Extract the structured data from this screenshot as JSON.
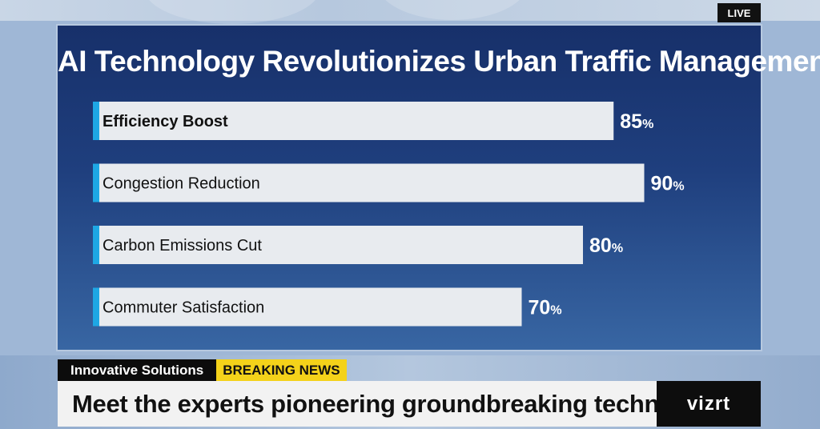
{
  "live_badge": "LIVE",
  "chart_data": {
    "type": "bar",
    "orientation": "horizontal",
    "title": "AI Technology Revolutionizes Urban Traffic Management",
    "categories": [
      "Efficiency Boost",
      "Congestion Reduction",
      "Carbon Emissions Cut",
      "Commuter Satisfaction"
    ],
    "values": [
      85,
      90,
      80,
      70
    ],
    "value_suffix": "%",
    "xlim": [
      0,
      100
    ],
    "grid": false,
    "legend": "none"
  },
  "colors": {
    "panel_top": "#17306a",
    "panel_bottom": "#3866a3",
    "bar_fill": "#e8ebef",
    "bar_accent": "#1ea7e4",
    "breaking_tag": "#f4d21a"
  },
  "ticker": {
    "section_tag": "Innovative Solutions",
    "breaking_tag": "BREAKING NEWS",
    "headline": "Meet the experts pioneering groundbreaking techniques"
  },
  "logo": {
    "text": "vizrt"
  }
}
